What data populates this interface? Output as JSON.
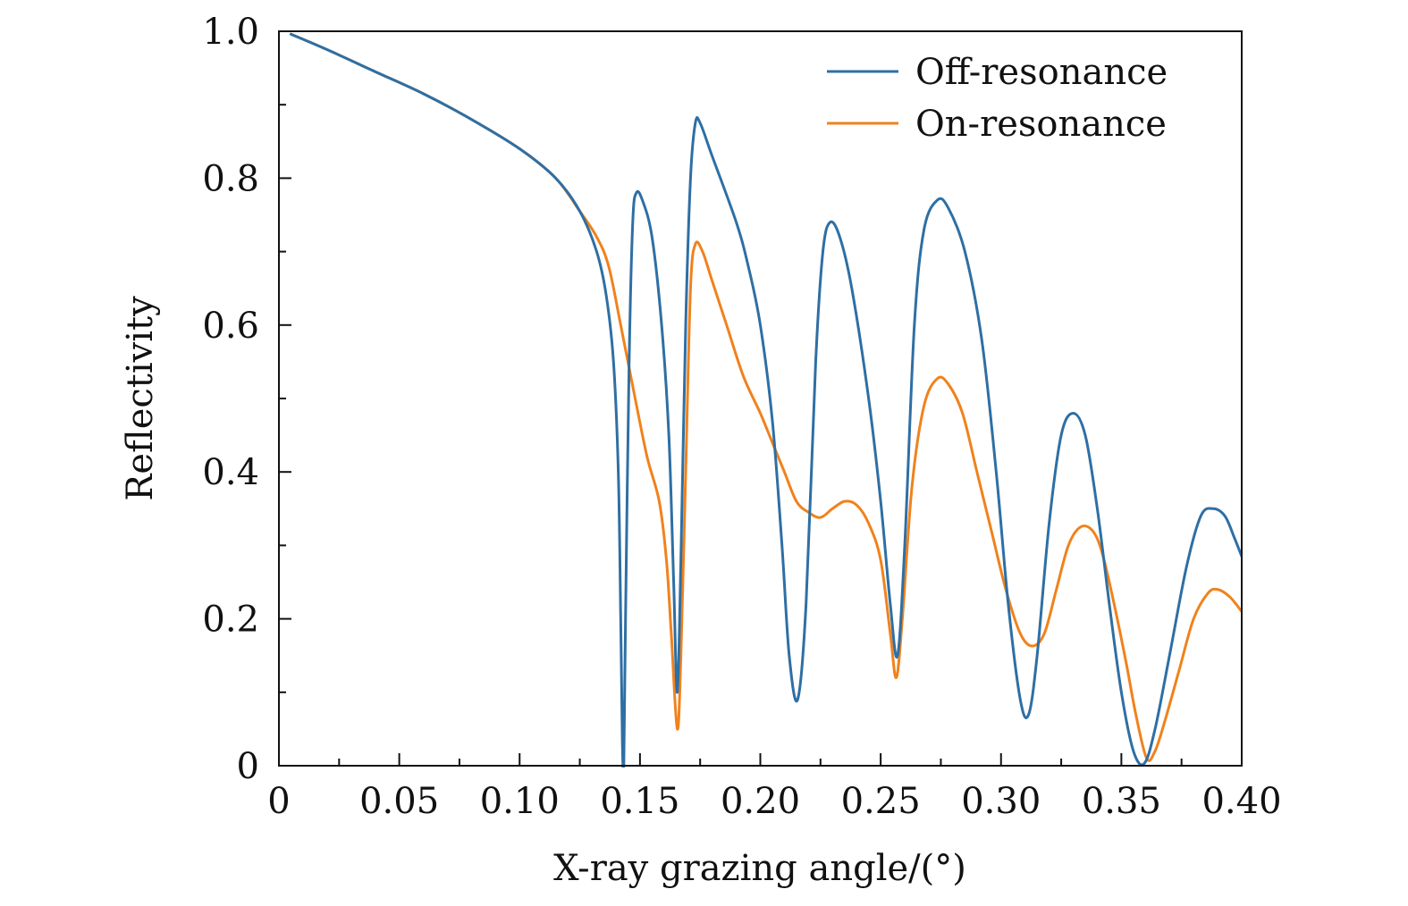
{
  "chart_data": {
    "type": "line",
    "title": "",
    "xlabel": "X-ray grazing angle/(°)",
    "ylabel": "Reflectivity",
    "xlim": [
      0,
      0.4
    ],
    "ylim": [
      0,
      1.0
    ],
    "x_ticks": [
      0,
      0.05,
      0.1,
      0.15,
      0.2,
      0.25,
      0.3,
      0.35,
      0.4
    ],
    "x_tick_labels": [
      "0",
      "0.05",
      "0.10",
      "0.15",
      "0.20",
      "0.25",
      "0.30",
      "0.35",
      "0.40"
    ],
    "y_ticks": [
      0,
      0.2,
      0.4,
      0.6,
      0.8,
      1.0
    ],
    "y_tick_labels": [
      "0",
      "0.2",
      "0.4",
      "0.6",
      "0.8",
      "1.0"
    ],
    "grid": false,
    "legend_position": "top-right",
    "series": [
      {
        "name": "Off-resonance",
        "color": "#2e6fa4",
        "points": [
          [
            0.005,
            0.996
          ],
          [
            0.02,
            0.975
          ],
          [
            0.04,
            0.945
          ],
          [
            0.06,
            0.915
          ],
          [
            0.08,
            0.88
          ],
          [
            0.1,
            0.84
          ],
          [
            0.115,
            0.8
          ],
          [
            0.125,
            0.755
          ],
          [
            0.132,
            0.7
          ],
          [
            0.136,
            0.64
          ],
          [
            0.139,
            0.55
          ],
          [
            0.141,
            0.4
          ],
          [
            0.142,
            0.2
          ],
          [
            0.1427,
            0.03
          ],
          [
            0.1433,
            0.005
          ],
          [
            0.144,
            0.2
          ],
          [
            0.1455,
            0.55
          ],
          [
            0.147,
            0.74
          ],
          [
            0.1485,
            0.78
          ],
          [
            0.151,
            0.77
          ],
          [
            0.155,
            0.72
          ],
          [
            0.159,
            0.6
          ],
          [
            0.162,
            0.45
          ],
          [
            0.164,
            0.25
          ],
          [
            0.1655,
            0.1
          ],
          [
            0.167,
            0.28
          ],
          [
            0.169,
            0.6
          ],
          [
            0.171,
            0.8
          ],
          [
            0.173,
            0.875
          ],
          [
            0.175,
            0.875
          ],
          [
            0.18,
            0.83
          ],
          [
            0.19,
            0.74
          ],
          [
            0.195,
            0.68
          ],
          [
            0.2,
            0.6
          ],
          [
            0.205,
            0.47
          ],
          [
            0.209,
            0.3
          ],
          [
            0.212,
            0.15
          ],
          [
            0.2155,
            0.09
          ],
          [
            0.219,
            0.22
          ],
          [
            0.223,
            0.55
          ],
          [
            0.226,
            0.7
          ],
          [
            0.229,
            0.74
          ],
          [
            0.233,
            0.72
          ],
          [
            0.238,
            0.65
          ],
          [
            0.245,
            0.5
          ],
          [
            0.25,
            0.36
          ],
          [
            0.254,
            0.22
          ],
          [
            0.257,
            0.15
          ],
          [
            0.26,
            0.3
          ],
          [
            0.264,
            0.6
          ],
          [
            0.268,
            0.73
          ],
          [
            0.2735,
            0.77
          ],
          [
            0.278,
            0.76
          ],
          [
            0.285,
            0.7
          ],
          [
            0.292,
            0.58
          ],
          [
            0.298,
            0.4
          ],
          [
            0.303,
            0.22
          ],
          [
            0.308,
            0.09
          ],
          [
            0.3115,
            0.07
          ],
          [
            0.315,
            0.15
          ],
          [
            0.32,
            0.33
          ],
          [
            0.325,
            0.45
          ],
          [
            0.33,
            0.48
          ],
          [
            0.335,
            0.45
          ],
          [
            0.34,
            0.35
          ],
          [
            0.345,
            0.22
          ],
          [
            0.35,
            0.1
          ],
          [
            0.355,
            0.02
          ],
          [
            0.3595,
            0.003
          ],
          [
            0.364,
            0.05
          ],
          [
            0.37,
            0.15
          ],
          [
            0.377,
            0.27
          ],
          [
            0.383,
            0.34
          ],
          [
            0.388,
            0.35
          ],
          [
            0.393,
            0.34
          ],
          [
            0.397,
            0.31
          ],
          [
            0.4,
            0.285
          ]
        ]
      },
      {
        "name": "On-resonance",
        "color": "#f0821c",
        "points": [
          [
            0.005,
            0.996
          ],
          [
            0.02,
            0.975
          ],
          [
            0.04,
            0.945
          ],
          [
            0.06,
            0.915
          ],
          [
            0.08,
            0.88
          ],
          [
            0.1,
            0.84
          ],
          [
            0.115,
            0.8
          ],
          [
            0.125,
            0.755
          ],
          [
            0.132,
            0.72
          ],
          [
            0.137,
            0.68
          ],
          [
            0.142,
            0.6
          ],
          [
            0.148,
            0.5
          ],
          [
            0.153,
            0.42
          ],
          [
            0.158,
            0.36
          ],
          [
            0.161,
            0.28
          ],
          [
            0.163,
            0.18
          ],
          [
            0.1655,
            0.05
          ],
          [
            0.167,
            0.15
          ],
          [
            0.169,
            0.4
          ],
          [
            0.171,
            0.65
          ],
          [
            0.173,
            0.71
          ],
          [
            0.176,
            0.7
          ],
          [
            0.18,
            0.66
          ],
          [
            0.186,
            0.6
          ],
          [
            0.193,
            0.53
          ],
          [
            0.2,
            0.48
          ],
          [
            0.205,
            0.44
          ],
          [
            0.21,
            0.4
          ],
          [
            0.215,
            0.36
          ],
          [
            0.22,
            0.345
          ],
          [
            0.225,
            0.338
          ],
          [
            0.23,
            0.35
          ],
          [
            0.235,
            0.36
          ],
          [
            0.24,
            0.355
          ],
          [
            0.245,
            0.33
          ],
          [
            0.25,
            0.28
          ],
          [
            0.254,
            0.18
          ],
          [
            0.2565,
            0.12
          ],
          [
            0.259,
            0.2
          ],
          [
            0.263,
            0.38
          ],
          [
            0.268,
            0.49
          ],
          [
            0.2735,
            0.527
          ],
          [
            0.278,
            0.52
          ],
          [
            0.284,
            0.48
          ],
          [
            0.29,
            0.4
          ],
          [
            0.296,
            0.32
          ],
          [
            0.302,
            0.24
          ],
          [
            0.308,
            0.18
          ],
          [
            0.313,
            0.163
          ],
          [
            0.318,
            0.18
          ],
          [
            0.323,
            0.24
          ],
          [
            0.328,
            0.3
          ],
          [
            0.333,
            0.325
          ],
          [
            0.338,
            0.32
          ],
          [
            0.342,
            0.29
          ],
          [
            0.347,
            0.22
          ],
          [
            0.352,
            0.14
          ],
          [
            0.356,
            0.07
          ],
          [
            0.3605,
            0.01
          ],
          [
            0.364,
            0.02
          ],
          [
            0.368,
            0.06
          ],
          [
            0.374,
            0.13
          ],
          [
            0.38,
            0.2
          ],
          [
            0.386,
            0.235
          ],
          [
            0.39,
            0.24
          ],
          [
            0.395,
            0.23
          ],
          [
            0.4,
            0.21
          ]
        ]
      }
    ]
  }
}
